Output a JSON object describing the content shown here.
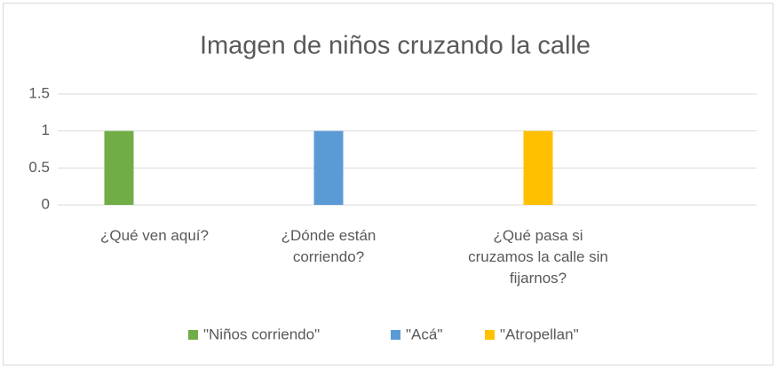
{
  "chart_data": {
    "type": "bar",
    "title": "Imagen de niños cruzando la calle",
    "categories": [
      "¿Qué ven aquí?",
      "¿Dónde están corriendo?",
      "¿Qué pasa si cruzamos la calle sin fijarnos?"
    ],
    "series": [
      {
        "name": "\"Niños corriendo\"",
        "color": "#70ad47",
        "values": [
          1,
          null,
          null
        ]
      },
      {
        "name": "\"Acá\"",
        "color": "#5b9bd5",
        "values": [
          null,
          1,
          null
        ]
      },
      {
        "name": "\"Atropellan\"",
        "color": "#ffc000",
        "values": [
          null,
          null,
          1
        ]
      }
    ],
    "ylim": [
      0,
      1.5
    ],
    "yticks": [
      0,
      0.5,
      1,
      1.5
    ],
    "grid": true,
    "legend": "bottom"
  }
}
